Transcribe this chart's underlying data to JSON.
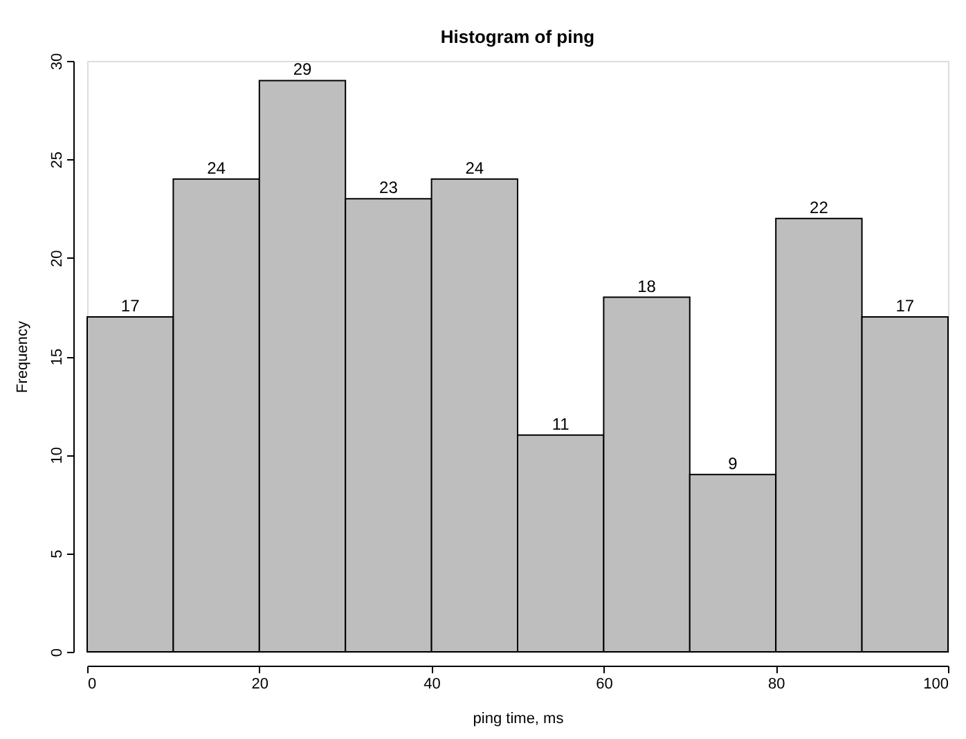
{
  "chart_data": {
    "type": "histogram",
    "title": "Histogram of ping",
    "xlabel": "ping time, ms",
    "ylabel": "Frequency",
    "bins": [
      0,
      10,
      20,
      30,
      40,
      50,
      60,
      70,
      80,
      90,
      100
    ],
    "values": [
      17,
      24,
      29,
      23,
      24,
      11,
      18,
      9,
      22,
      17
    ],
    "color": "#bebebe",
    "data_labels": true,
    "grid": false,
    "xlim": [
      0,
      100
    ],
    "xticks": [
      0,
      20,
      40,
      60,
      80,
      100
    ],
    "ylim": [
      0,
      30
    ],
    "yticks": [
      0,
      5,
      10,
      15,
      20,
      25,
      30
    ]
  }
}
